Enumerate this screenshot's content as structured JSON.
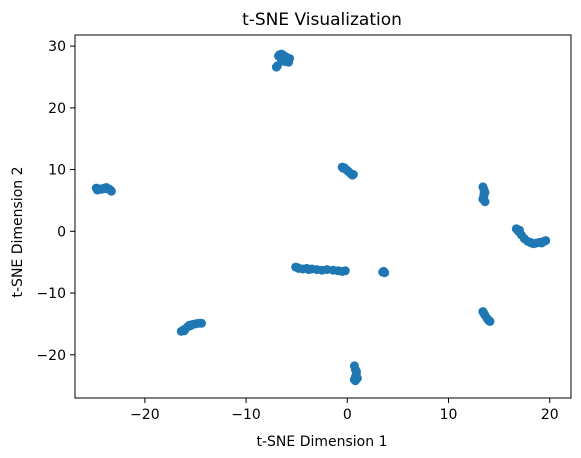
{
  "chart_data": {
    "type": "scatter",
    "title": "t-SNE Visualization",
    "xlabel": "t-SNE Dimension 1",
    "ylabel": "t-SNE Dimension 2",
    "xlim": [
      -26.9,
      22.1
    ],
    "ylim": [
      -27.0,
      31.8
    ],
    "xticks": [
      -20,
      -10,
      0,
      10,
      20
    ],
    "xtick_labels": [
      "−20",
      "−10",
      "0",
      "10",
      "20"
    ],
    "yticks": [
      -20,
      -10,
      0,
      10,
      20,
      30
    ],
    "ytick_labels": [
      "−20",
      "−10",
      "0",
      "10",
      "20",
      "30"
    ],
    "grid": false,
    "legend": "none",
    "marker_color": "#1f77b4",
    "x": [
      -24.8,
      -24.6,
      -24.4,
      -24.2,
      -24.0,
      -23.8,
      -23.6,
      -23.4,
      -23.3,
      -24.7,
      -24.3,
      -23.9,
      -6.9,
      -6.7,
      -6.5,
      -6.3,
      -6.1,
      -5.9,
      -5.7,
      -6.6,
      -6.2,
      -5.8,
      -7.0,
      -6.8,
      -0.5,
      -0.3,
      -0.1,
      0.1,
      0.3,
      0.5,
      0.6,
      -0.4,
      13.4,
      13.5,
      13.6,
      13.5,
      13.4,
      13.6,
      13.5,
      16.7,
      16.9,
      17.2,
      17.5,
      17.8,
      18.1,
      18.4,
      18.7,
      19.0,
      19.3,
      19.5,
      19.6,
      17.0,
      18.2,
      19.2,
      -5.1,
      -4.8,
      -4.4,
      -4.0,
      -3.5,
      -3.0,
      -2.5,
      -2.0,
      -1.4,
      -0.9,
      -0.5,
      -0.2,
      -4.9,
      -3.8,
      3.6,
      3.7,
      3.5,
      -16.4,
      -16.2,
      -16.0,
      -15.8,
      -15.6,
      -15.3,
      -15.0,
      -14.7,
      -14.4,
      -16.1,
      -15.5,
      13.4,
      13.6,
      13.8,
      14.0,
      14.1,
      13.5,
      13.9,
      0.7,
      0.8,
      0.9,
      0.8,
      0.7,
      1.0,
      0.9,
      0.8
    ],
    "y": [
      7.0,
      6.9,
      6.8,
      6.9,
      7.0,
      7.1,
      6.9,
      6.7,
      6.5,
      6.7,
      6.8,
      6.9,
      26.8,
      28.6,
      28.7,
      28.5,
      28.3,
      27.6,
      28.0,
      28.1,
      27.5,
      27.4,
      26.6,
      28.4,
      10.4,
      10.3,
      10.0,
      9.7,
      9.4,
      9.1,
      9.2,
      10.2,
      7.2,
      6.8,
      6.3,
      5.7,
      5.2,
      4.8,
      6.0,
      0.4,
      0.0,
      -0.6,
      -1.2,
      -1.6,
      -1.8,
      -2.0,
      -1.9,
      -1.8,
      -1.7,
      -1.6,
      -1.5,
      0.2,
      -1.9,
      -1.9,
      -5.8,
      -6.0,
      -6.1,
      -6.0,
      -6.1,
      -6.2,
      -6.3,
      -6.2,
      -6.3,
      -6.4,
      -6.5,
      -6.4,
      -5.9,
      -6.2,
      -6.5,
      -6.7,
      -6.6,
      -16.2,
      -16.0,
      -15.8,
      -15.5,
      -15.2,
      -15.1,
      -15.0,
      -14.9,
      -14.9,
      -16.1,
      -15.3,
      -13.0,
      -13.6,
      -14.1,
      -14.5,
      -14.6,
      -13.3,
      -14.3,
      -21.8,
      -22.4,
      -23.0,
      -23.6,
      -24.0,
      -23.8,
      -22.7,
      -24.2
    ]
  }
}
